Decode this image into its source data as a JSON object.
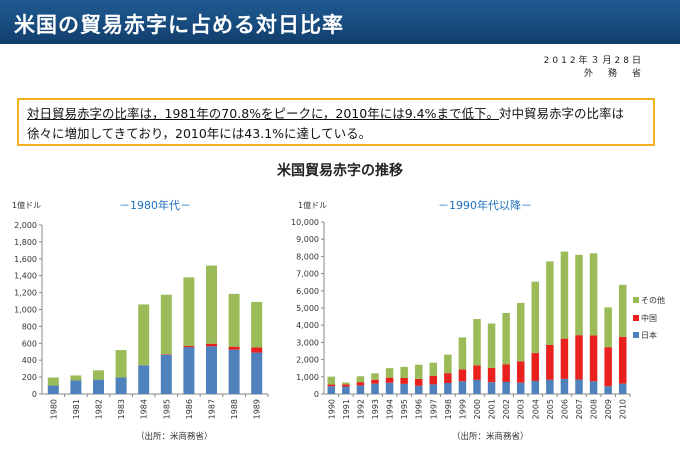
{
  "header": {
    "title": "米国の貿易赤字に占める対日比率"
  },
  "date": {
    "line1": "2012年３月28日",
    "line2": "外　務　省"
  },
  "summary": {
    "underlined": "対日貿易赤字の比率は，1981年の70.8%をピークに，2010年には9.4%まで低下。",
    "rest": "対中貿易赤字の比率は徐々に増加してきており，2010年には43.1%に達している。"
  },
  "section_title": "米国貿易赤字の推移",
  "colors": {
    "japan": "#4f81bd",
    "china": "#e8201e",
    "other": "#9bbb59",
    "axis": "#888888",
    "panel_title": "#1f6fbf"
  },
  "chart_data": [
    {
      "type": "bar",
      "stacked": true,
      "title": "－1980年代－",
      "unit_label": "1億ドル",
      "ylim": [
        0,
        2000
      ],
      "yticks": [
        0,
        200,
        400,
        600,
        800,
        1000,
        1200,
        1400,
        1600,
        1800,
        2000
      ],
      "ytick_labels": [
        "0",
        "200",
        "400",
        "600",
        "800",
        "1,000",
        "1,200",
        "1,400",
        "1,600",
        "1,800",
        "2,000"
      ],
      "categories": [
        "1980",
        "1981",
        "1982",
        "1983",
        "1984",
        "1985",
        "1986",
        "1987",
        "1988",
        "1989"
      ],
      "series": [
        {
          "name": "日本",
          "values": [
            100,
            160,
            170,
            195,
            340,
            465,
            555,
            565,
            525,
            490
          ]
        },
        {
          "name": "中国",
          "values": [
            0,
            0,
            0,
            0,
            0,
            5,
            15,
            30,
            35,
            60
          ]
        },
        {
          "name": "その他",
          "values": [
            95,
            60,
            110,
            325,
            720,
            705,
            810,
            925,
            625,
            540
          ]
        }
      ],
      "source": "（出所：米商務省）"
    },
    {
      "type": "bar",
      "stacked": true,
      "title": "－1990年代以降－",
      "unit_label": "1億ドル",
      "ylim": [
        0,
        10000
      ],
      "yticks": [
        0,
        1000,
        2000,
        3000,
        4000,
        5000,
        6000,
        7000,
        8000,
        9000,
        10000
      ],
      "ytick_labels": [
        "0",
        "1,000",
        "2,000",
        "3,000",
        "4,000",
        "5,000",
        "6,000",
        "7,000",
        "8,000",
        "9,000",
        "10,000"
      ],
      "categories": [
        "1990",
        "1991",
        "1992",
        "1993",
        "1994",
        "1995",
        "1996",
        "1997",
        "1998",
        "1999",
        "2000",
        "2001",
        "2002",
        "2003",
        "2004",
        "2005",
        "2006",
        "2007",
        "2008",
        "2009",
        "2010"
      ],
      "series": [
        {
          "name": "日本",
          "values": [
            450,
            430,
            500,
            600,
            650,
            590,
            480,
            560,
            640,
            740,
            820,
            690,
            700,
            660,
            760,
            830,
            880,
            840,
            740,
            450,
            600
          ]
        },
        {
          "name": "中国",
          "values": [
            100,
            130,
            190,
            230,
            300,
            340,
            400,
            500,
            570,
            690,
            840,
            830,
            1030,
            1240,
            1620,
            2020,
            2340,
            2580,
            2660,
            2270,
            2730
          ]
        },
        {
          "name": "その他",
          "values": [
            460,
            110,
            340,
            370,
            550,
            650,
            820,
            760,
            1080,
            1860,
            2700,
            2580,
            2980,
            3400,
            4150,
            4860,
            5060,
            4670,
            4780,
            2320,
            3020
          ]
        }
      ],
      "legend": [
        "その他",
        "中国",
        "日本"
      ],
      "source": "（出所：米商務省）"
    }
  ]
}
